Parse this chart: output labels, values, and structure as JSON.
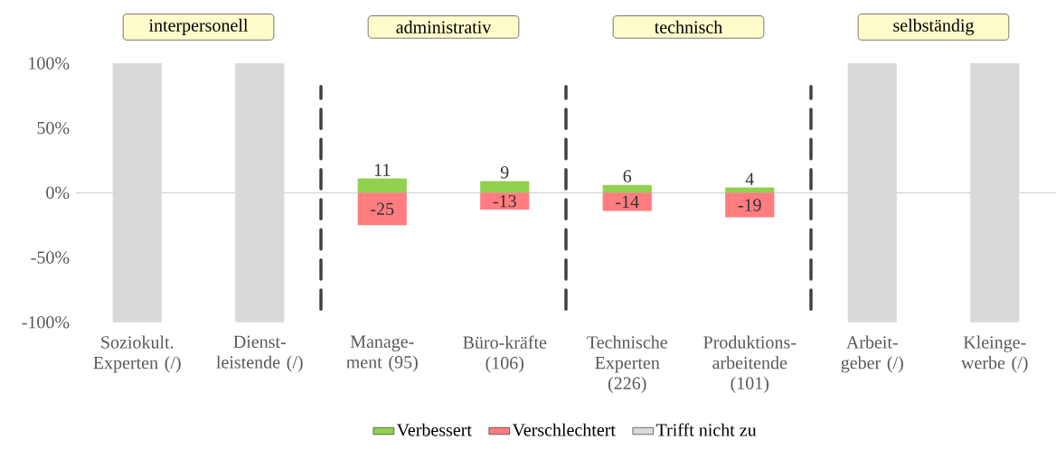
{
  "chart_data": {
    "type": "bar",
    "categories": [
      "Soziokult. Experten (/)",
      "Dienst-leistende (/)",
      "Manage-ment (95)",
      "Büro-kräfte (106)",
      "Technische Experten (226)",
      "Produktions-arbeitende (101)",
      "Arbeit-geber (/)",
      "Kleinge-werbe (/)"
    ],
    "series": [
      {
        "name": "Verbessert",
        "color": "#92d050",
        "values": [
          null,
          null,
          11,
          9,
          6,
          4,
          null,
          null
        ],
        "data_labels": true
      },
      {
        "name": "Verschlechtert",
        "color": "#ff7c80",
        "values": [
          null,
          null,
          -25,
          -13,
          -14,
          -19,
          null,
          null
        ],
        "data_labels": true
      },
      {
        "name": "Trifft nicht zu",
        "color": "#d9d9d9",
        "values": [
          100,
          100,
          null,
          null,
          null,
          null,
          100,
          100
        ]
      },
      {
        "color": "#d9d9d9",
        "values": [
          -100,
          -100,
          null,
          null,
          null,
          null,
          -100,
          -100
        ]
      }
    ],
    "ylim": [
      -100,
      100
    ],
    "yticks": [
      {
        "value": -100,
        "label": "-100%"
      },
      {
        "value": -50,
        "label": "-50%"
      },
      {
        "value": 0,
        "label": "0%"
      },
      {
        "value": 50,
        "label": "50%"
      },
      {
        "value": 100,
        "label": "100%"
      }
    ],
    "ref_lines": [
      {
        "axis": "y",
        "value": 0,
        "color": "#bfbfbf",
        "line_style": "solid"
      }
    ],
    "stacked": true,
    "annotations": [
      "interpersonell",
      "administrativ",
      "technisch",
      "selbständig"
    ],
    "legend": "bottom",
    "grid": false
  }
}
